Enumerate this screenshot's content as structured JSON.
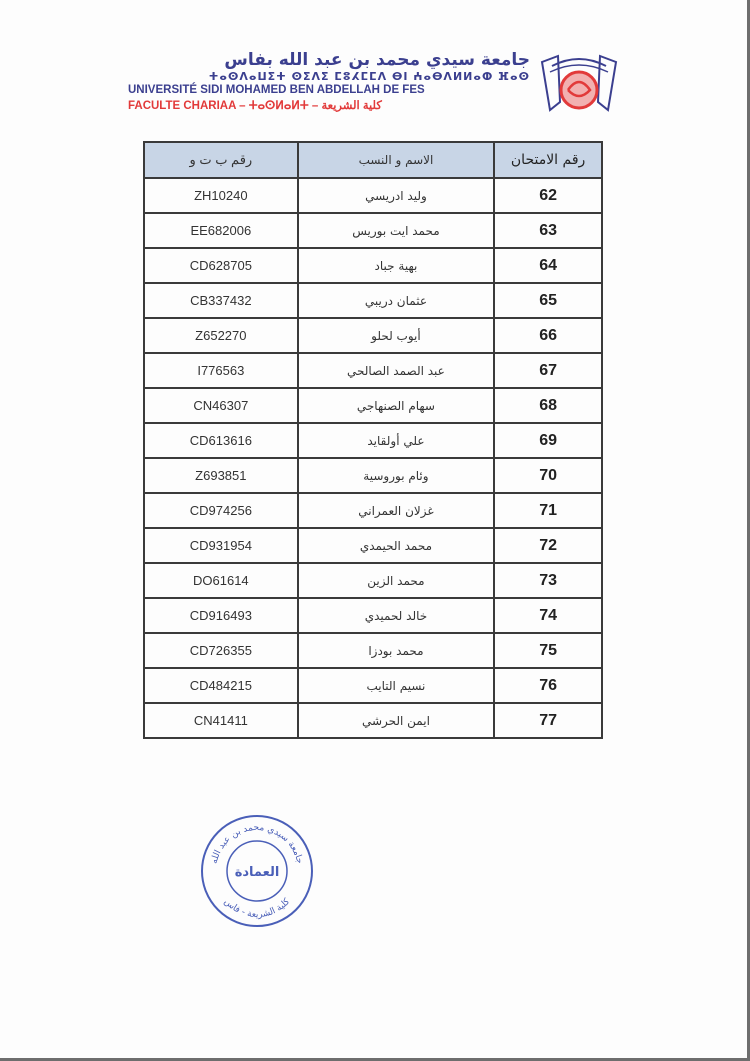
{
  "header": {
    "arabic_name": "جامعة سيدي محمد بن عبد الله بفاس",
    "tifinagh_name": "ⵜⴰⵙⴷⴰⵡⵉⵜ ⵙⵉⴷⵉ ⵎⵓⵃⵎⵎⴷ ⴱⵏ ⵄⴰⴱⴷⵍⵍⴰⵀ ⴼⴰⵙ",
    "french_name": "UNIVERSITÉ SIDI MOHAMED BEN ABDELLAH DE FES",
    "faculty_line": "FACULTE CHARIAA – ⵜⴰⵙⵍⴰⵍⵜ – كلية الشريعة",
    "logo_colors": {
      "blue": "#3b3f8f",
      "red": "#e23a3a"
    }
  },
  "table": {
    "columns": [
      "رقم ب ت و",
      "الاسم و النسب",
      "رقم الامتحان"
    ],
    "header_bg": "#c8d5e6",
    "rows": [
      {
        "id": "ZH10240",
        "name": "وليد ادريسي",
        "num": "62"
      },
      {
        "id": "EE682006",
        "name": "محمد ايت بوريس",
        "num": "63"
      },
      {
        "id": "CD628705",
        "name": "بهية جباد",
        "num": "64"
      },
      {
        "id": "CB337432",
        "name": "عثمان دريبي",
        "num": "65"
      },
      {
        "id": "Z652270",
        "name": "أيوب لحلو",
        "num": "66"
      },
      {
        "id": "I776563",
        "name": "عبد الصمد الصالحي",
        "num": "67"
      },
      {
        "id": "CN46307",
        "name": "سهام الصنهاجي",
        "num": "68"
      },
      {
        "id": "CD613616",
        "name": "علي أولقايد",
        "num": "69"
      },
      {
        "id": "Z693851",
        "name": "وئام بوروسية",
        "num": "70"
      },
      {
        "id": "CD974256",
        "name": "غزلان العمراني",
        "num": "71"
      },
      {
        "id": "CD931954",
        "name": "محمد الحيمدي",
        "num": "72"
      },
      {
        "id": "DO61614",
        "name": "محمد الزين",
        "num": "73"
      },
      {
        "id": "CD916493",
        "name": "خالد لحميدي",
        "num": "74"
      },
      {
        "id": "CD726355",
        "name": "محمد بودزا",
        "num": "75"
      },
      {
        "id": "CD484215",
        "name": "نسيم التايب",
        "num": "76"
      },
      {
        "id": "CN41411",
        "name": "ايمن الحرشي",
        "num": "77"
      }
    ]
  },
  "stamp": {
    "center": "العمادة",
    "ring_top": "جامعة سيدي محمد بن عبد الله",
    "ring_bottom": "كلية الشريعة - فاس",
    "color": "#4a5fb8"
  }
}
